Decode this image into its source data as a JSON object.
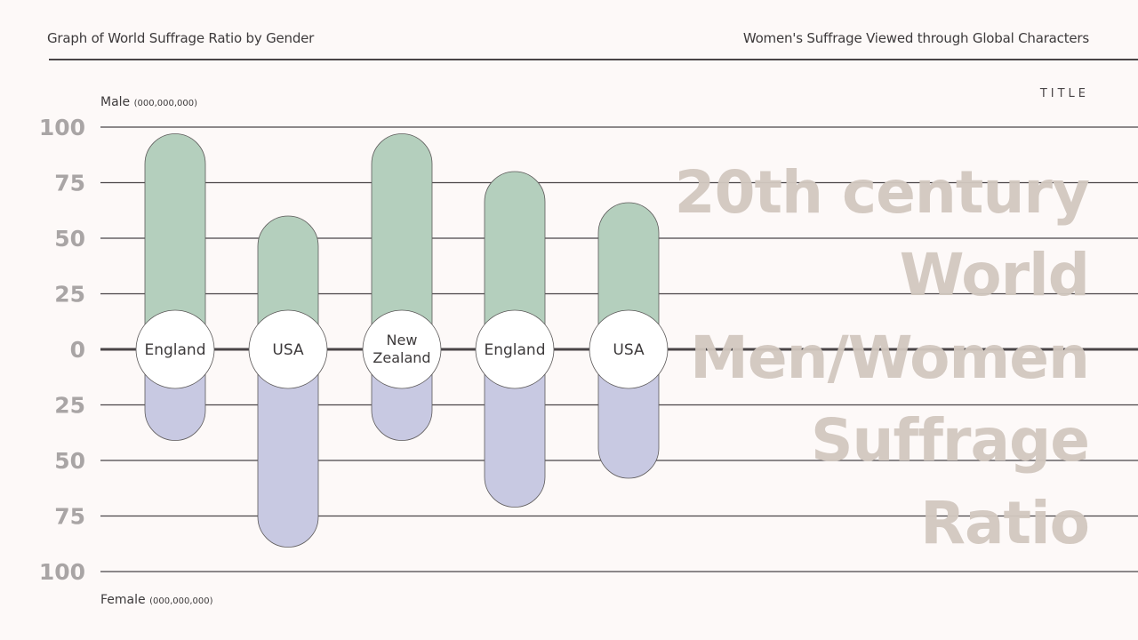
{
  "header": {
    "left_title": "Graph of World Suffrage Ratio by Gender",
    "right_title": "Women's Suffrage Viewed through Global Characters"
  },
  "title_tag": "TITLE",
  "big_title": {
    "lines": [
      "20th century",
      "World",
      "Men/Women",
      "Suffrage",
      "Ratio"
    ]
  },
  "axis": {
    "male_label": "Male",
    "male_unit": "(000,000,000)",
    "female_label": "Female",
    "female_unit": "(000,000,000)"
  },
  "colors": {
    "background": "#fdf9f8",
    "male": "#b4cfbd",
    "female": "#c8c9e2",
    "axis_text": "#a9a5a5",
    "title_text": "#d2c8c0",
    "grid": "#4a4547"
  },
  "chart_data": {
    "type": "bar",
    "title": "Graph of World Suffrage Ratio by Gender",
    "subtitle": "20th century World Men/Women Suffrage Ratio",
    "xlabel": "",
    "ylabel": "Male (000,000,000) / Female (000,000,000)",
    "categories": [
      "England",
      "USA",
      "New Zealand",
      "England",
      "USA"
    ],
    "series": [
      {
        "name": "Male",
        "color": "#b4cfbd",
        "values": [
          97,
          60,
          97,
          80,
          66
        ]
      },
      {
        "name": "Female",
        "color": "#c8c9e2",
        "values": [
          41,
          89,
          41,
          71,
          58
        ]
      }
    ],
    "yticks_male": [
      100,
      75,
      50,
      25,
      0
    ],
    "yticks_female": [
      25,
      50,
      75,
      100
    ],
    "ylim": [
      -100,
      100
    ],
    "grid": true,
    "legend_position": "none (axis captions Male top / Female bottom)"
  }
}
